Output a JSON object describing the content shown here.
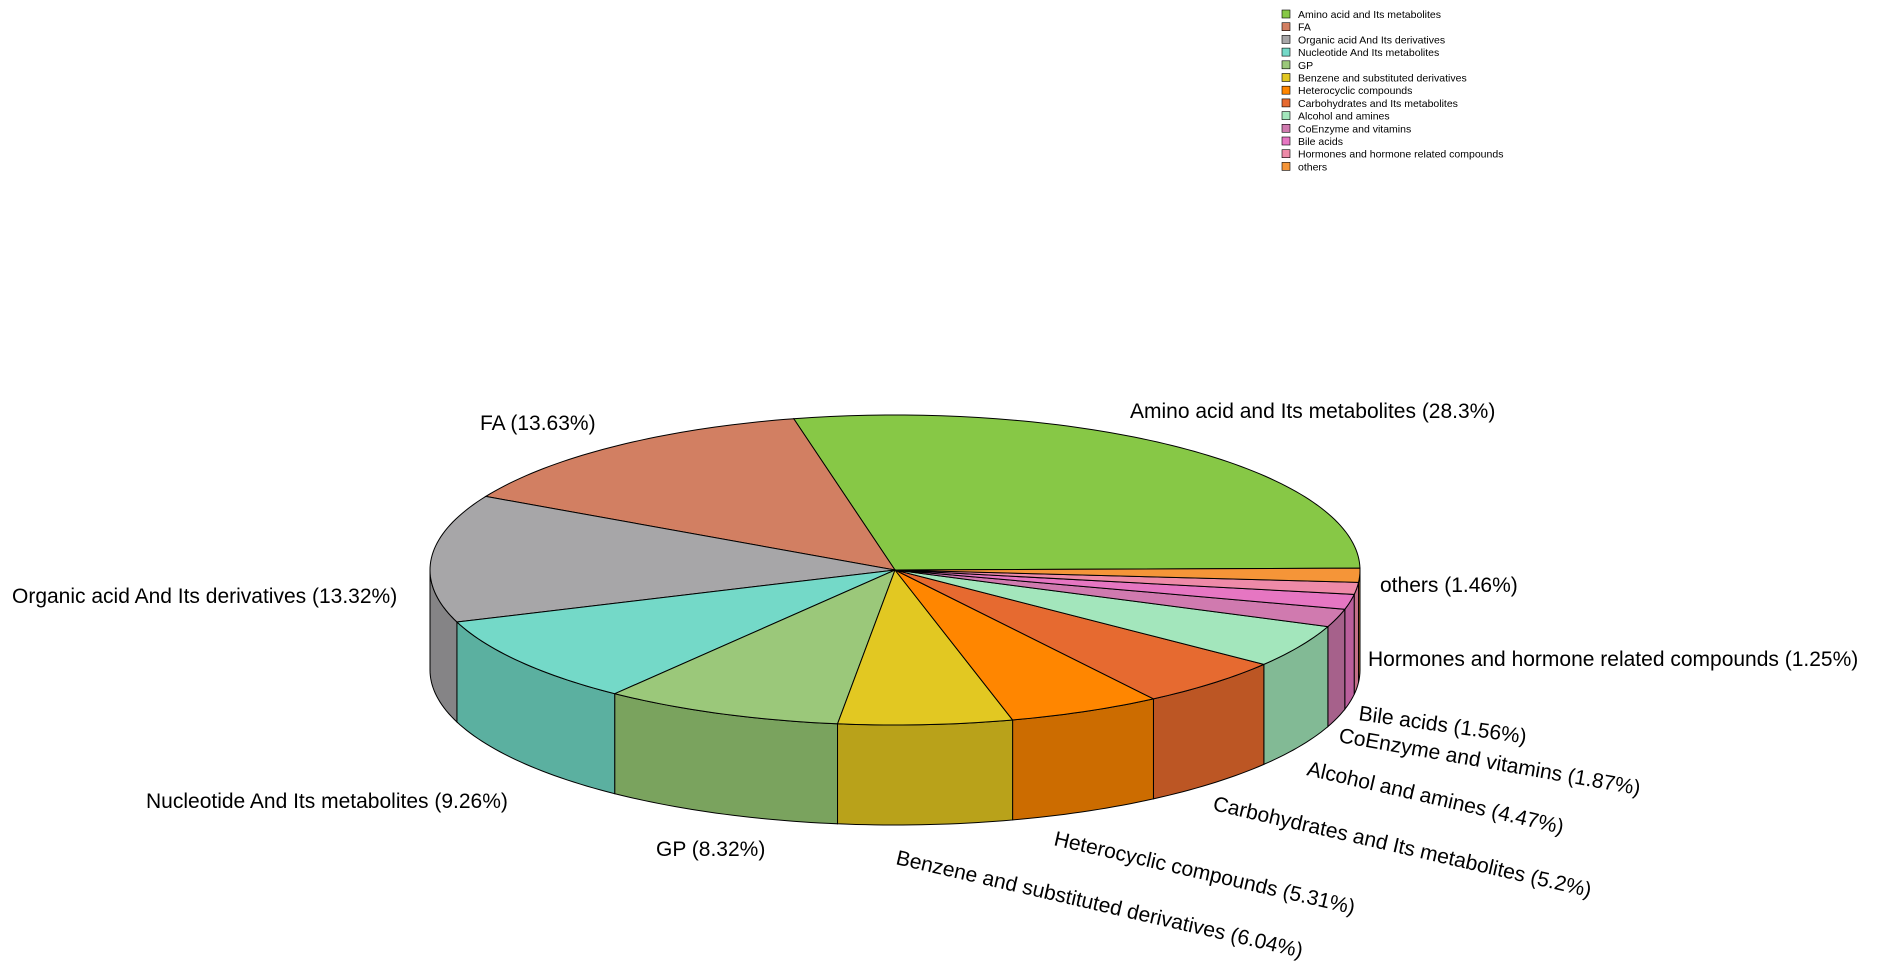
{
  "chart_data": {
    "type": "pie",
    "style": "3d",
    "legend": {
      "position": "top-right"
    },
    "slices": [
      {
        "label": "Amino acid and Its metabolites",
        "value": 28.3,
        "value_text": "Amino acid and Its metabolites (28.3%)",
        "color": "#87C846",
        "side": "#6FA53A"
      },
      {
        "label": "FA",
        "value": 13.63,
        "value_text": "FA (13.63%)",
        "color": "#D27F62",
        "side": "#B06A52"
      },
      {
        "label": "Organic acid And Its derivatives",
        "value": 13.32,
        "value_text": "Organic acid And Its derivatives (13.32%)",
        "color": "#A7A6A8",
        "side": "#858486"
      },
      {
        "label": "Nucleotide And Its metabolites",
        "value": 9.26,
        "value_text": "Nucleotide And Its metabolites (9.26%)",
        "color": "#74D9C8",
        "side": "#5BB0A0"
      },
      {
        "label": "GP",
        "value": 8.32,
        "value_text": "GP (8.32%)",
        "color": "#9BC87A",
        "side": "#7AA35E"
      },
      {
        "label": "Benzene and substituted derivatives",
        "value": 6.04,
        "value_text": "Benzene and substituted derivatives (6.04%)",
        "color": "#E2C822",
        "side": "#B9A21A"
      },
      {
        "label": "Heterocyclic compounds",
        "value": 5.31,
        "value_text": "Heterocyclic compounds (5.31%)",
        "color": "#FF8600",
        "side": "#CC6C00"
      },
      {
        "label": "Carbohydrates and Its metabolites",
        "value": 5.2,
        "value_text": "Carbohydrates and Its metabolites (5.2%)",
        "color": "#E66A30",
        "side": "#BC5624"
      },
      {
        "label": "Alcohol and amines",
        "value": 4.47,
        "value_text": "Alcohol and amines (4.47%)",
        "color": "#A3E6BC",
        "side": "#82BA95"
      },
      {
        "label": "CoEnzyme and vitamins",
        "value": 1.87,
        "value_text": "CoEnzyme and vitamins (1.87%)",
        "color": "#D07AAF",
        "side": "#A6618B"
      },
      {
        "label": "Bile acids",
        "value": 1.56,
        "value_text": "Bile acids (1.56%)",
        "color": "#E676C2",
        "side": "#BA5F9C"
      },
      {
        "label": "Hormones and hormone related compounds",
        "value": 1.25,
        "value_text": "Hormones and hormone related compounds (1.25%)",
        "color": "#EE8AA8",
        "side": "#C46F88"
      },
      {
        "label": "others",
        "value": 1.46,
        "value_text": "others (1.46%)",
        "color": "#F59538",
        "side": "#C8782C"
      }
    ]
  }
}
